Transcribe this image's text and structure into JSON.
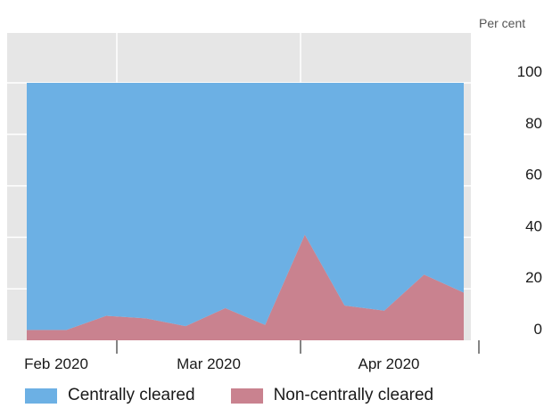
{
  "chart_data": {
    "type": "area",
    "stacked": true,
    "unit_label": "Per cent",
    "x": [
      "2020-01-31",
      "2020-02-07",
      "2020-02-14",
      "2020-02-21",
      "2020-02-28",
      "2020-03-06",
      "2020-03-13",
      "2020-03-20",
      "2020-03-27",
      "2020-04-03",
      "2020-04-10",
      "2020-04-17"
    ],
    "x_tick_labels": [
      "Feb 2020",
      "Mar 2020",
      "Apr 2020"
    ],
    "series": [
      {
        "name": "Non-centrally cleared",
        "color": "#c9828f",
        "values": [
          4,
          4,
          9.5,
          8.5,
          5.5,
          12.5,
          6,
          41,
          13.5,
          11.5,
          25.5,
          18.5
        ]
      },
      {
        "name": "Centrally cleared",
        "color": "#6cb0e4",
        "values": [
          96,
          96,
          90.5,
          91.5,
          94.5,
          87.5,
          94,
          59,
          86.5,
          88.5,
          74.5,
          81.5
        ]
      }
    ],
    "ylim": [
      0,
      100
    ],
    "yticks": [
      0,
      20,
      40,
      60,
      80,
      100
    ],
    "y_axis_side": "right",
    "grid": true,
    "legend_position": "bottom"
  }
}
